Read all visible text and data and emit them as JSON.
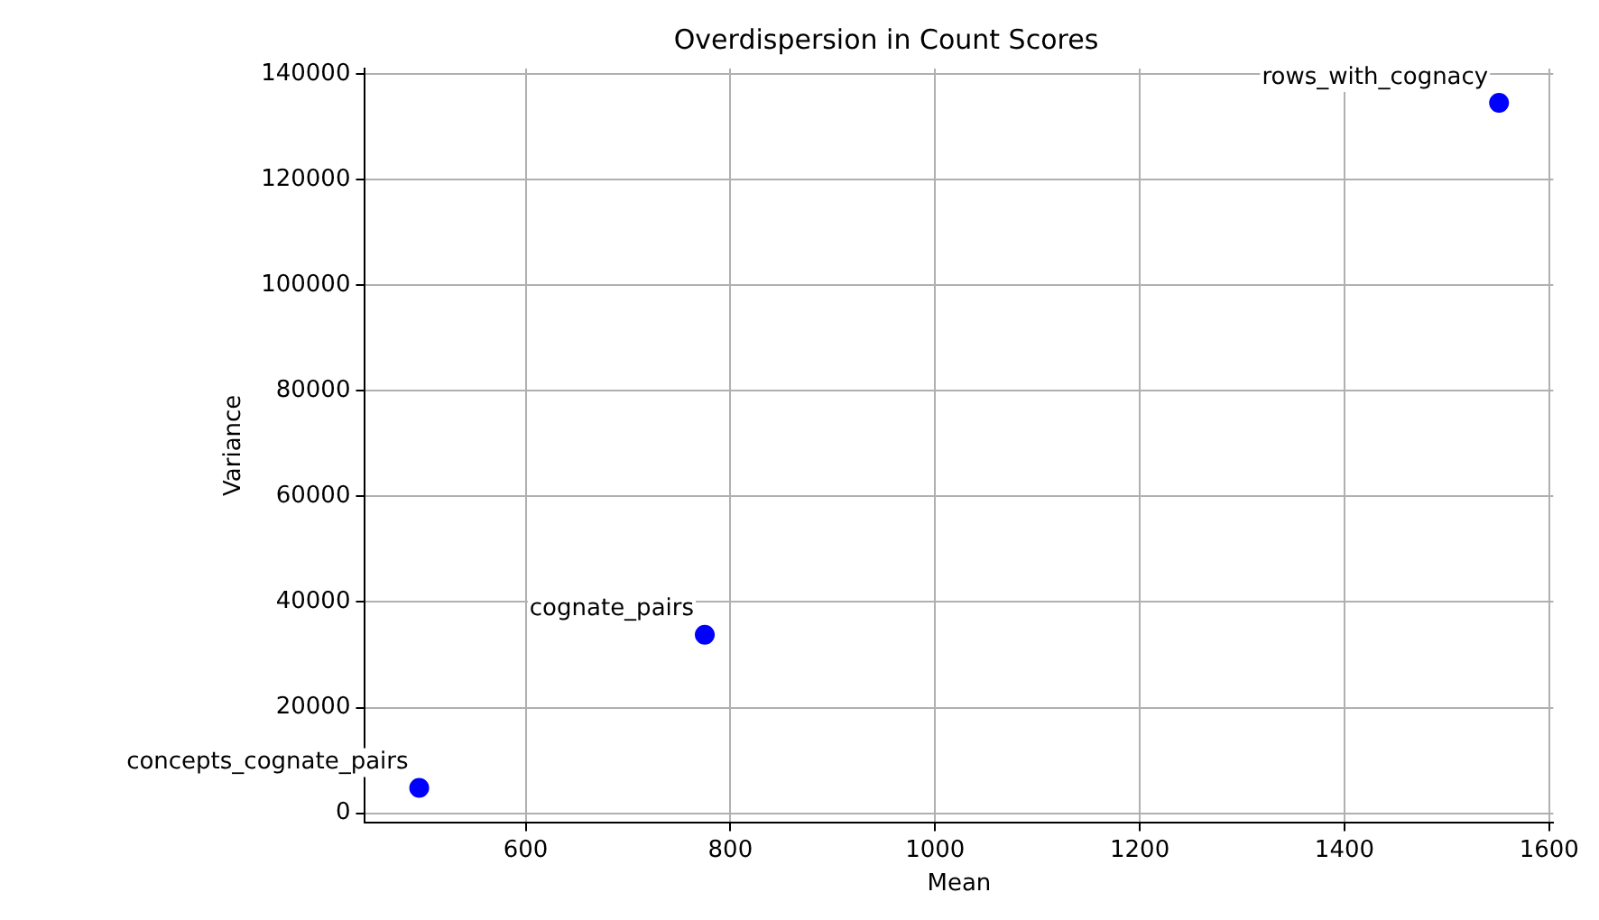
{
  "chart_data": {
    "type": "scatter",
    "title": "Overdispersion in Count Scores",
    "xlabel": "Mean",
    "ylabel": "Variance",
    "x": [
      496,
      775,
      1551
    ],
    "series": [
      {
        "color": "#0000ff",
        "values": [
          4800,
          33800,
          134500
        ]
      }
    ],
    "annotations": [
      {
        "text": "concepts_cognate_pairs",
        "x": 496,
        "y": 4800
      },
      {
        "text": "cognate_pairs",
        "x": 775,
        "y": 33800
      },
      {
        "text": "rows_with_cognacy",
        "x": 1551,
        "y": 134500
      }
    ],
    "xlim": [
      443,
      1604
    ],
    "xticks": [
      600,
      800,
      1000,
      1200,
      1400,
      1600
    ],
    "ylim": [
      -1700,
      141000
    ],
    "yticks": [
      0,
      20000,
      40000,
      60000,
      80000,
      100000,
      120000,
      140000
    ],
    "grid": true,
    "legend": false,
    "marker": "circle"
  }
}
